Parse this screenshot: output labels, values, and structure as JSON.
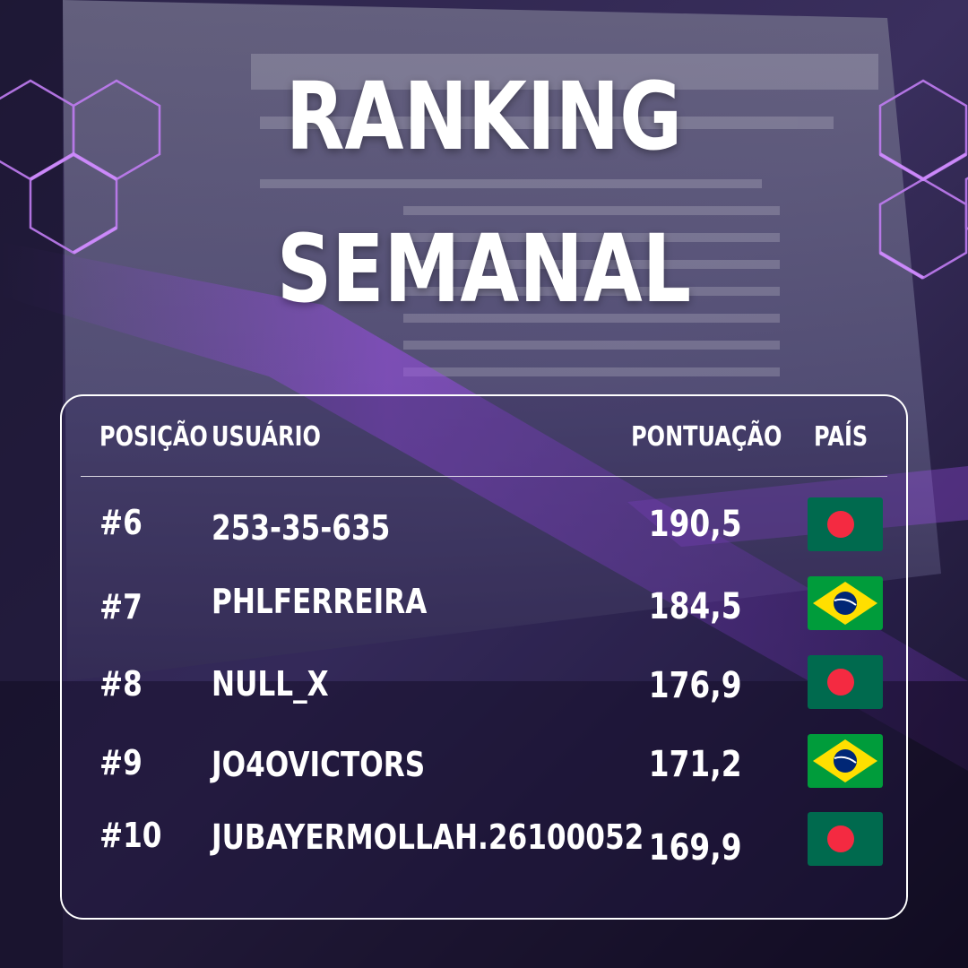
{
  "title": {
    "line1": "RANKING",
    "line2": "SEMANAL"
  },
  "table": {
    "headers": {
      "position": "POSIÇÃO",
      "user": "USUÁRIO",
      "points": "PONTUAÇÃO",
      "country": "PAÍS"
    },
    "rows": [
      {
        "position": "#6",
        "user": "253-35-635",
        "points": "190,5",
        "flag": "bangladesh-flag-icon"
      },
      {
        "position": "#7",
        "user": "PHLFERREIRA",
        "points": "184,5",
        "flag": "brazil-flag-icon"
      },
      {
        "position": "#8",
        "user": "NULL_X",
        "points": "176,9",
        "flag": "bangladesh-flag-icon"
      },
      {
        "position": "#9",
        "user": "JO4OVICTORS",
        "points": "171,2",
        "flag": "brazil-flag-icon"
      },
      {
        "position": "#10",
        "user": "JUBAYERMOLLAH.26100052",
        "points": "169,9",
        "flag": "bangladesh-flag-icon"
      }
    ]
  },
  "colors": {
    "bangladesh_green": "#006a4e",
    "bangladesh_red": "#f42a41",
    "brazil_green": "#009c3b",
    "brazil_yellow": "#ffdf00",
    "brazil_blue": "#002776",
    "accent_purple": "#b05cf0"
  }
}
